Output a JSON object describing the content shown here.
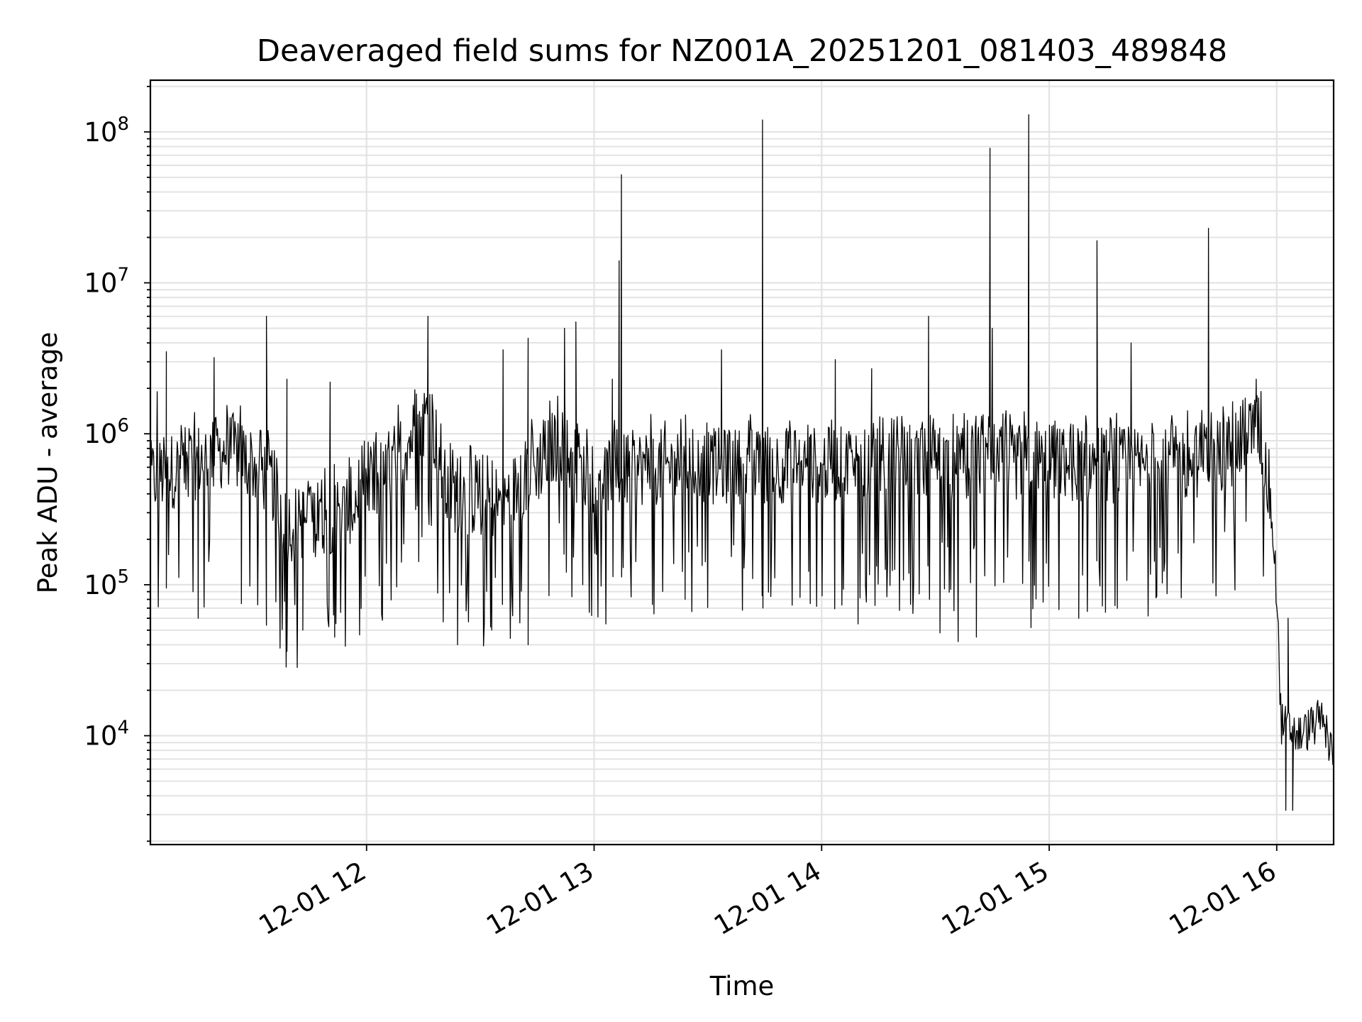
{
  "chart_data": {
    "type": "line",
    "title": "Deaveraged field sums for NZ001A_20251201_081403_489848",
    "xlabel": "Time",
    "ylabel": "Peak ADU - average",
    "yscale": "log",
    "xlim_hours": [
      11.05,
      16.25
    ],
    "ylim": [
      1900,
      220000000
    ],
    "grid": true,
    "x_ticks": [
      {
        "hour": 12,
        "label": "12-01 12"
      },
      {
        "hour": 13,
        "label": "12-01 13"
      },
      {
        "hour": 14,
        "label": "12-01 14"
      },
      {
        "hour": 15,
        "label": "12-01 15"
      },
      {
        "hour": 16,
        "label": "12-01 16"
      }
    ],
    "y_ticks": [
      {
        "value": 10000,
        "base": "10",
        "exp": "4"
      },
      {
        "value": 100000,
        "base": "10",
        "exp": "5"
      },
      {
        "value": 1000000,
        "base": "10",
        "exp": "6"
      },
      {
        "value": 10000000,
        "base": "10",
        "exp": "7"
      },
      {
        "value": 100000000,
        "base": "10",
        "exp": "8"
      }
    ],
    "series": [
      {
        "color": "#000000",
        "baseline": [
          {
            "hour": 11.05,
            "value": 500000
          },
          {
            "hour": 11.4,
            "value": 800000
          },
          {
            "hour": 11.58,
            "value": 500000
          },
          {
            "hour": 11.65,
            "value": 250000
          },
          {
            "hour": 11.9,
            "value": 300000
          },
          {
            "hour": 12.1,
            "value": 600000
          },
          {
            "hour": 12.28,
            "value": 1400000
          },
          {
            "hour": 12.35,
            "value": 400000
          },
          {
            "hour": 12.6,
            "value": 350000
          },
          {
            "hour": 12.85,
            "value": 900000
          },
          {
            "hour": 12.95,
            "value": 500000
          },
          {
            "hour": 13.2,
            "value": 600000
          },
          {
            "hour": 15.0,
            "value": 650000
          },
          {
            "hour": 15.5,
            "value": 600000
          },
          {
            "hour": 15.8,
            "value": 750000
          },
          {
            "hour": 15.92,
            "value": 1100000
          },
          {
            "hour": 15.97,
            "value": 400000
          },
          {
            "hour": 16.0,
            "value": 90000
          },
          {
            "hour": 16.02,
            "value": 12000
          },
          {
            "hour": 16.1,
            "value": 10000
          },
          {
            "hour": 16.2,
            "value": 13000
          },
          {
            "hour": 16.25,
            "value": 7000
          }
        ],
        "spikes": [
          {
            "hour": 11.08,
            "value": 1900000
          },
          {
            "hour": 11.12,
            "value": 3500000
          },
          {
            "hour": 11.33,
            "value": 3200000
          },
          {
            "hour": 11.56,
            "value": 6000000
          },
          {
            "hour": 11.65,
            "value": 2300000
          },
          {
            "hour": 11.84,
            "value": 2200000
          },
          {
            "hour": 12.27,
            "value": 6000000
          },
          {
            "hour": 12.6,
            "value": 3600000
          },
          {
            "hour": 12.71,
            "value": 4300000
          },
          {
            "hour": 12.87,
            "value": 5000000
          },
          {
            "hour": 12.92,
            "value": 5500000
          },
          {
            "hour": 13.08,
            "value": 2300000
          },
          {
            "hour": 13.11,
            "value": 14000000
          },
          {
            "hour": 13.12,
            "value": 52000000
          },
          {
            "hour": 13.56,
            "value": 3600000
          },
          {
            "hour": 13.74,
            "value": 120000000
          },
          {
            "hour": 14.06,
            "value": 3100000
          },
          {
            "hour": 14.22,
            "value": 2700000
          },
          {
            "hour": 14.47,
            "value": 6000000
          },
          {
            "hour": 14.74,
            "value": 78000000
          },
          {
            "hour": 14.75,
            "value": 5000000
          },
          {
            "hour": 14.91,
            "value": 130000000
          },
          {
            "hour": 15.21,
            "value": 19000000
          },
          {
            "hour": 15.36,
            "value": 4000000
          },
          {
            "hour": 15.7,
            "value": 23000000
          },
          {
            "hour": 15.91,
            "value": 2300000
          }
        ],
        "dips": [
          {
            "hour": 11.12,
            "value": 95000
          },
          {
            "hour": 11.26,
            "value": 60000
          },
          {
            "hour": 11.45,
            "value": 75000
          },
          {
            "hour": 11.62,
            "value": 38000
          },
          {
            "hour": 11.72,
            "value": 50000
          },
          {
            "hour": 11.86,
            "value": 45000
          },
          {
            "hour": 12.4,
            "value": 40000
          },
          {
            "hour": 12.55,
            "value": 50000
          },
          {
            "hour": 12.71,
            "value": 40000
          },
          {
            "hour": 12.95,
            "value": 100000
          },
          {
            "hour": 13.4,
            "value": 80000
          },
          {
            "hour": 13.95,
            "value": 75000
          },
          {
            "hour": 14.16,
            "value": 55000
          },
          {
            "hour": 14.52,
            "value": 48000
          },
          {
            "hour": 14.6,
            "value": 42000
          },
          {
            "hour": 14.68,
            "value": 45000
          },
          {
            "hour": 14.92,
            "value": 52000
          },
          {
            "hour": 15.13,
            "value": 60000
          },
          {
            "hour": 15.3,
            "value": 150000
          },
          {
            "hour": 16.04,
            "value": 3200
          },
          {
            "hour": 16.07,
            "value": 3200
          },
          {
            "hour": 16.05,
            "value": 60000
          }
        ]
      }
    ]
  }
}
